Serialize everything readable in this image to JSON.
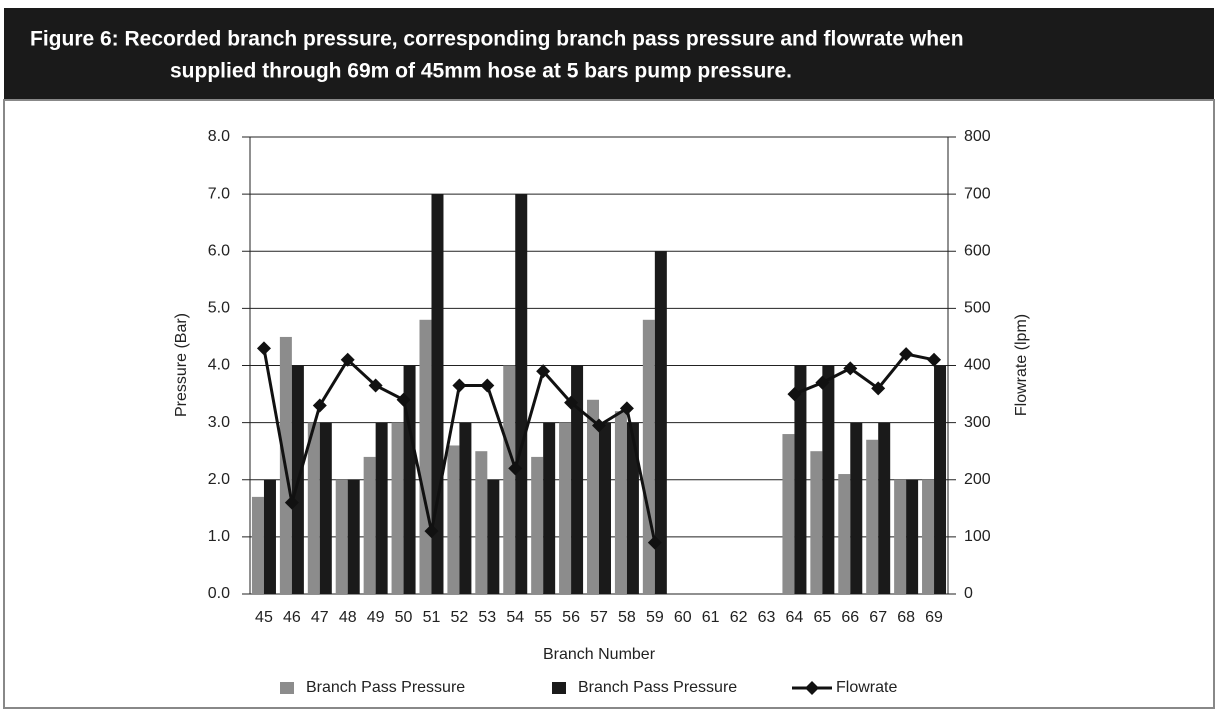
{
  "chart_data": {
    "type": "bar",
    "title": [
      "Figure 6: Recorded branch pressure, corresponding branch pass pressure and flowrate when",
      "supplied through 69m of 45mm hose at 5 bars pump pressure."
    ],
    "x_label": "Branch Number",
    "y_label": "Pressure (Bar)",
    "y2_label": "Flowrate (lpm)",
    "categories": [
      "45",
      "46",
      "47",
      "48",
      "49",
      "50",
      "51",
      "52",
      "53",
      "54",
      "55",
      "56",
      "57",
      "58",
      "59",
      "60",
      "61",
      "62",
      "63",
      "64",
      "65",
      "66",
      "67",
      "68",
      "69"
    ],
    "series": [
      {
        "name": "Branch Pass Pressure",
        "color": "#8c8c8c",
        "type": "bar",
        "values": [
          1.7,
          4.5,
          3.0,
          2.0,
          2.4,
          3.0,
          4.8,
          2.6,
          2.5,
          4.0,
          2.4,
          3.0,
          3.4,
          3.2,
          4.8,
          null,
          null,
          null,
          null,
          2.8,
          2.5,
          2.1,
          2.7,
          2.0,
          2.0
        ]
      },
      {
        "name": "Branch Pass Pressure",
        "color": "#1a1a1a",
        "type": "bar",
        "values": [
          2.0,
          4.0,
          3.0,
          2.0,
          3.0,
          4.0,
          7.0,
          3.0,
          2.0,
          7.0,
          3.0,
          4.0,
          3.0,
          3.0,
          6.0,
          null,
          null,
          null,
          null,
          4.0,
          4.0,
          3.0,
          3.0,
          2.0,
          4.0
        ]
      },
      {
        "name": "Flowrate",
        "color": "#111111",
        "type": "line",
        "axis": "y2",
        "values": [
          430,
          160,
          330,
          410,
          365,
          340,
          110,
          365,
          365,
          220,
          390,
          335,
          295,
          325,
          90,
          null,
          null,
          null,
          null,
          350,
          370,
          395,
          360,
          420,
          410
        ]
      }
    ],
    "ylim": [
      0,
      8
    ],
    "yticks": [
      {
        "value": 0,
        "label": "0.0"
      },
      {
        "value": 1,
        "label": "1.0"
      },
      {
        "value": 2,
        "label": "2.0"
      },
      {
        "value": 3,
        "label": "3.0"
      },
      {
        "value": 4,
        "label": "4.0"
      },
      {
        "value": 5,
        "label": "5.0"
      },
      {
        "value": 6,
        "label": "6.0"
      },
      {
        "value": 7,
        "label": "7.0"
      },
      {
        "value": 8,
        "label": "8.0"
      }
    ],
    "y2lim": [
      0,
      800
    ],
    "y2ticks": [
      0,
      100,
      200,
      300,
      400,
      500,
      600,
      700,
      800
    ],
    "grid": true
  }
}
